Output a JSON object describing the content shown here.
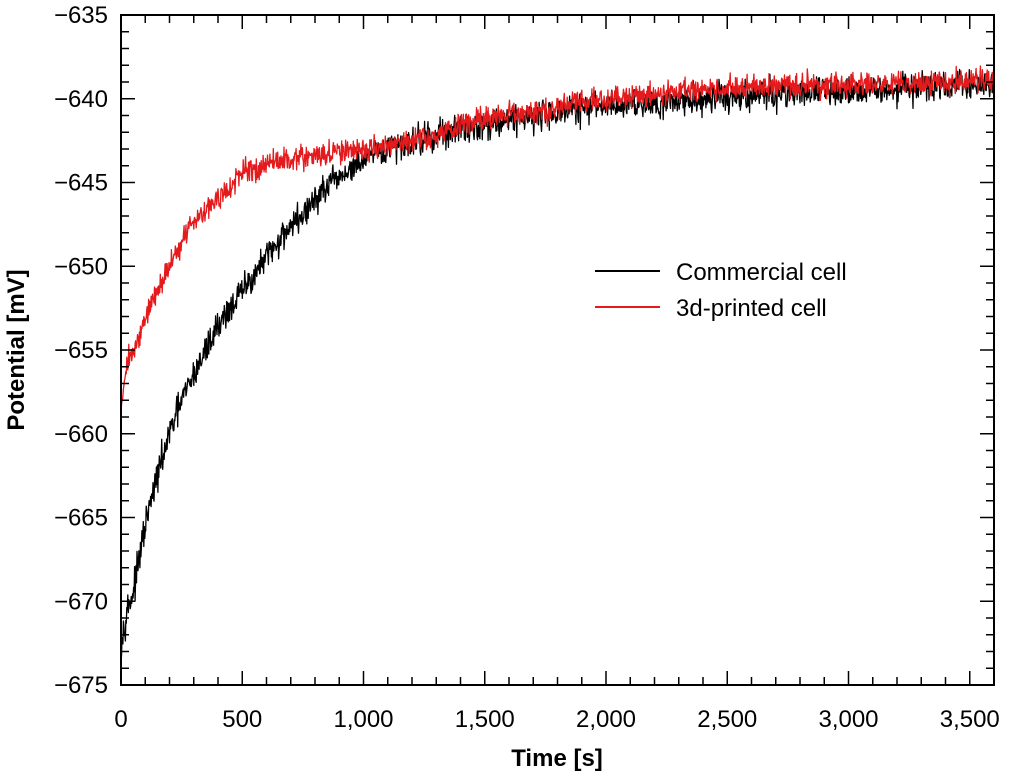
{
  "chart_data": {
    "type": "line",
    "title": "",
    "xlabel": "Time [s]",
    "ylabel": "Potential [mV]",
    "xlim": [
      0,
      3600
    ],
    "ylim": [
      -675,
      -635
    ],
    "xticks": [
      0,
      500,
      1000,
      1500,
      2000,
      2500,
      3000,
      3500
    ],
    "xtick_labels": [
      "0",
      "500",
      "1,000",
      "1,500",
      "2,000",
      "2,500",
      "3,000",
      "3,500"
    ],
    "xminor_step": 100,
    "yticks": [
      -675,
      -670,
      -665,
      -660,
      -655,
      -650,
      -645,
      -640,
      -635
    ],
    "ytick_labels": [
      "−675",
      "−670",
      "−665",
      "−660",
      "−655",
      "−650",
      "−645",
      "−640",
      "−635"
    ],
    "yminor_step": 1,
    "grid": false,
    "legend_position": "center-right",
    "series": [
      {
        "name": "Commercial cell",
        "color": "#000000",
        "noise_amplitude": 0.45,
        "x": [
          0,
          25,
          50,
          100,
          150,
          200,
          250,
          300,
          350,
          400,
          450,
          500,
          550,
          600,
          650,
          700,
          750,
          800,
          850,
          900,
          950,
          1000,
          1100,
          1200,
          1300,
          1400,
          1500,
          1600,
          1700,
          1800,
          1900,
          2000,
          2200,
          2400,
          2600,
          2800,
          3000,
          3200,
          3400,
          3600
        ],
        "values": [
          -672.5,
          -670.5,
          -669.5,
          -665.5,
          -662.5,
          -660.0,
          -658.0,
          -656.5,
          -655.0,
          -653.5,
          -652.5,
          -651.5,
          -650.5,
          -649.5,
          -648.5,
          -647.5,
          -647.0,
          -646.0,
          -645.3,
          -644.7,
          -644.2,
          -643.7,
          -643.0,
          -642.5,
          -642.2,
          -641.8,
          -641.5,
          -641.2,
          -641.0,
          -640.8,
          -640.6,
          -640.4,
          -640.2,
          -640.0,
          -639.8,
          -639.6,
          -639.5,
          -639.4,
          -639.2,
          -639.2
        ]
      },
      {
        "name": "3d-printed cell",
        "color": "#e41a1c",
        "noise_amplitude": 0.35,
        "x": [
          0,
          15,
          30,
          60,
          100,
          150,
          200,
          250,
          300,
          350,
          400,
          450,
          500,
          550,
          600,
          650,
          700,
          800,
          900,
          1000,
          1100,
          1200,
          1300,
          1400,
          1500,
          1600,
          1700,
          1800,
          1900,
          2000,
          2200,
          2400,
          2600,
          2800,
          3000,
          3200,
          3400,
          3600
        ],
        "values": [
          -658.5,
          -656.5,
          -655.5,
          -655.0,
          -653.0,
          -651.5,
          -650.0,
          -648.5,
          -647.3,
          -646.5,
          -646.0,
          -645.3,
          -644.5,
          -644.2,
          -643.9,
          -643.7,
          -643.6,
          -643.4,
          -643.2,
          -643.0,
          -642.8,
          -642.6,
          -642.2,
          -641.6,
          -641.2,
          -641.0,
          -640.8,
          -640.5,
          -640.2,
          -640.0,
          -639.7,
          -639.4,
          -639.3,
          -639.2,
          -639.2,
          -639.1,
          -639.0,
          -638.9
        ]
      }
    ]
  }
}
